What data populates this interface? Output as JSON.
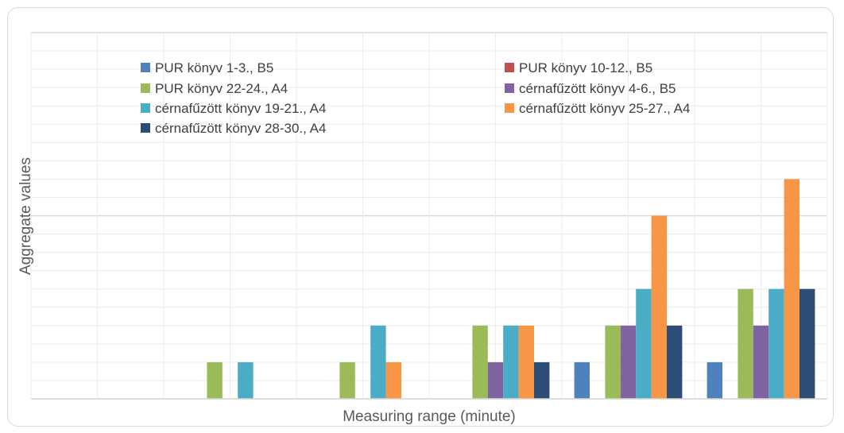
{
  "chart_data": {
    "type": "bar",
    "title": "",
    "xlabel": "Measuring range (minute)",
    "ylabel": "Aggregate values",
    "categories": [
      "",
      "",
      "",
      "",
      "",
      ""
    ],
    "ylim": [
      0,
      10
    ],
    "grid": true,
    "legend_position": "top",
    "series": [
      {
        "name": "PUR könyv 1-3., B5",
        "color": "#4f81bd",
        "values": [
          0,
          0,
          0,
          0,
          1,
          1
        ]
      },
      {
        "name": "PUR könyv 10-12., B5",
        "color": "#c0504d",
        "values": [
          0,
          0,
          0,
          0,
          0,
          0
        ]
      },
      {
        "name": "PUR könyv 22-24., A4",
        "color": "#9bbb59",
        "values": [
          0,
          1,
          1,
          2,
          2,
          3
        ]
      },
      {
        "name": "cérnafűzött könyv 4-6., B5",
        "color": "#8064a2",
        "values": [
          0,
          0,
          0,
          1,
          2,
          2
        ]
      },
      {
        "name": "cérnafűzött könyv 19-21., A4",
        "color": "#4bacc6",
        "values": [
          0,
          1,
          2,
          2,
          3,
          3
        ]
      },
      {
        "name": "cérnafűzött könyv 25-27., A4",
        "color": "#f79646",
        "values": [
          0,
          0,
          1,
          2,
          5,
          6
        ]
      },
      {
        "name": "cérnafűzött könyv 28-30., A4",
        "color": "#2c4d75",
        "values": [
          0,
          0,
          0,
          1,
          2,
          3
        ]
      }
    ]
  }
}
